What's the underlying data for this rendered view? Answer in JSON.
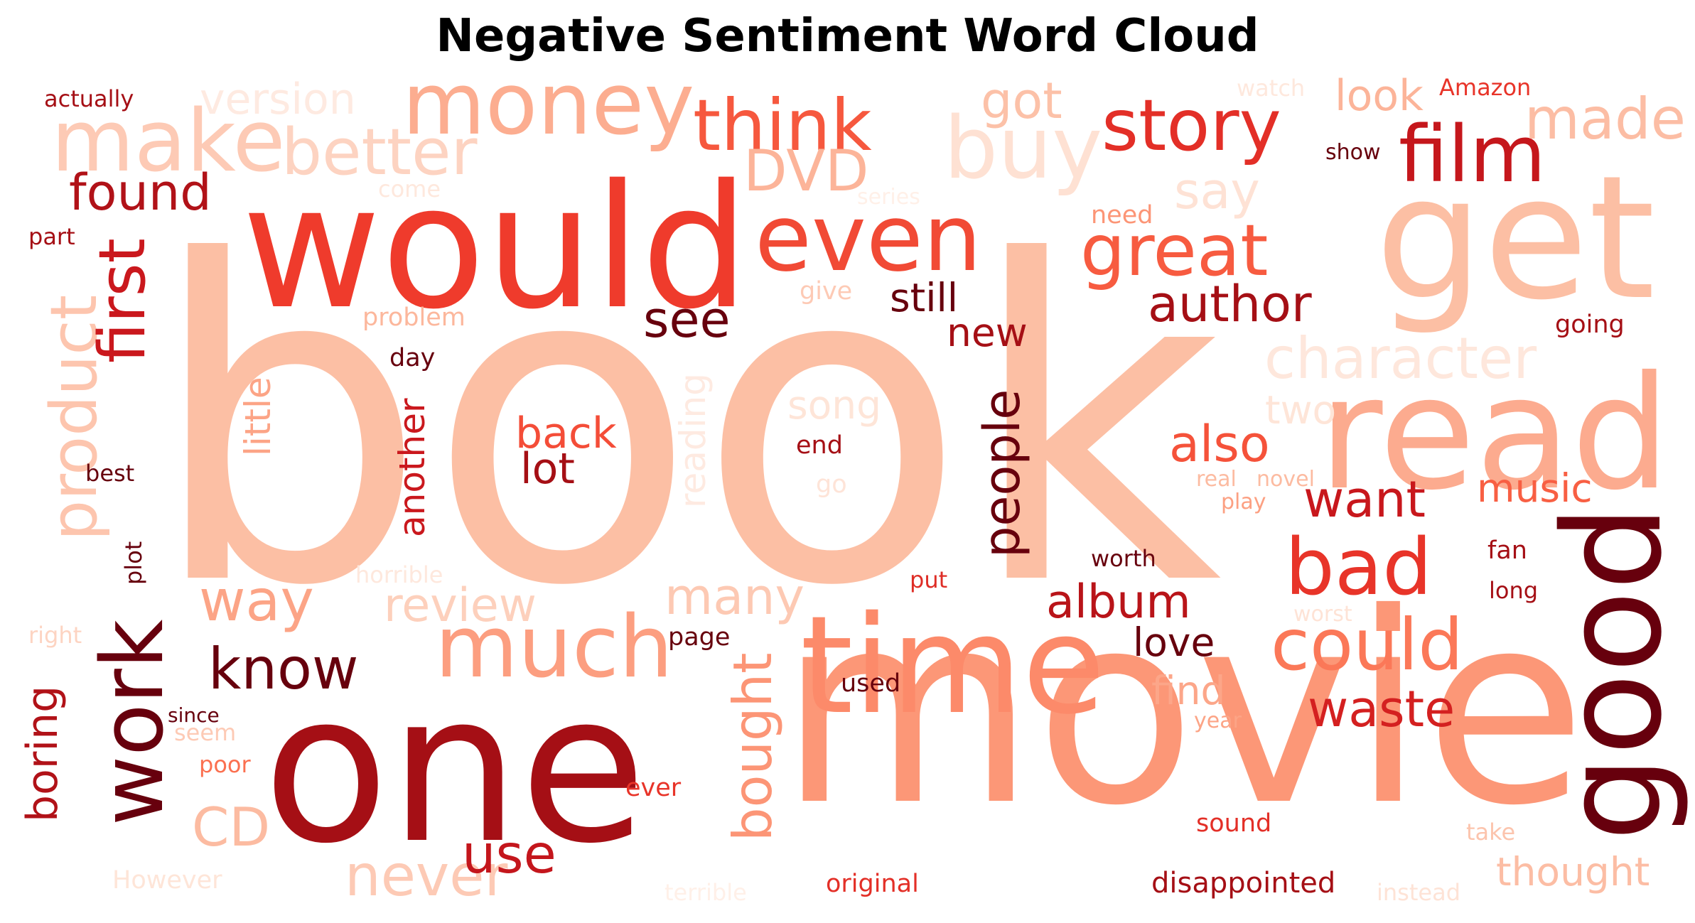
{
  "title": "Negative Sentiment Word Cloud",
  "words": [
    {
      "text": "book",
      "color": "#fcbfa4"
    },
    {
      "text": "movie",
      "color": "#fc9777"
    },
    {
      "text": "one",
      "color": "#a50f15"
    },
    {
      "text": "would",
      "color": "#ef3b2c"
    },
    {
      "text": "get",
      "color": "#fcbfa4"
    },
    {
      "text": "read",
      "color": "#fcab8f"
    },
    {
      "text": "good",
      "color": "#67000d"
    },
    {
      "text": "time",
      "color": "#fc8a6a"
    },
    {
      "text": "even",
      "color": "#f14a35"
    },
    {
      "text": "much",
      "color": "#fc9e80"
    },
    {
      "text": "work",
      "color": "#67000d"
    },
    {
      "text": "money",
      "color": "#fcad90"
    },
    {
      "text": "make",
      "color": "#fdcab5"
    },
    {
      "text": "film",
      "color": "#c5171c"
    },
    {
      "text": "buy",
      "color": "#fee1d3"
    },
    {
      "text": "great",
      "color": "#f75b40"
    },
    {
      "text": "think",
      "color": "#f6583e"
    },
    {
      "text": "story",
      "color": "#e32f27"
    },
    {
      "text": "bad",
      "color": "#e83429"
    },
    {
      "text": "could",
      "color": "#fb7858"
    },
    {
      "text": "better",
      "color": "#fdd3c1"
    },
    {
      "text": "product",
      "color": "#fdc5ae"
    },
    {
      "text": "first",
      "color": "#ca181d"
    },
    {
      "text": "made",
      "color": "#fcbda4"
    },
    {
      "text": "DVD",
      "color": "#fcb499"
    },
    {
      "text": "way",
      "color": "#fca486"
    },
    {
      "text": "know",
      "color": "#67000d"
    },
    {
      "text": "never",
      "color": "#fdcab5"
    },
    {
      "text": "people",
      "color": "#67000d"
    },
    {
      "text": "character",
      "color": "#fee7dc"
    },
    {
      "text": "waste",
      "color": "#d42020"
    },
    {
      "text": "found",
      "color": "#b11218"
    },
    {
      "text": "see",
      "color": "#67000d"
    },
    {
      "text": "author",
      "color": "#a50f15"
    },
    {
      "text": "say",
      "color": "#fee2d5"
    },
    {
      "text": "got",
      "color": "#fcc1a8"
    },
    {
      "text": "look",
      "color": "#fcb499"
    },
    {
      "text": "version",
      "color": "#feeae1"
    },
    {
      "text": "also",
      "color": "#f5523a"
    },
    {
      "text": "want",
      "color": "#c8171c"
    },
    {
      "text": "album",
      "color": "#b91419"
    },
    {
      "text": "review",
      "color": "#fdd0bc"
    },
    {
      "text": "many",
      "color": "#fdc9b3"
    },
    {
      "text": "bought",
      "color": "#fc9576"
    },
    {
      "text": "CD",
      "color": "#fcbba1"
    },
    {
      "text": "boring",
      "color": "#b11218"
    },
    {
      "text": "use",
      "color": "#c4161c"
    },
    {
      "text": "still",
      "color": "#67000d"
    },
    {
      "text": "new",
      "color": "#a50f15"
    },
    {
      "text": "little",
      "color": "#fca486"
    },
    {
      "text": "another",
      "color": "#ca181d"
    },
    {
      "text": "reading",
      "color": "#feeae1"
    },
    {
      "text": "back",
      "color": "#f44d38"
    },
    {
      "text": "lot",
      "color": "#a50f15"
    },
    {
      "text": "music",
      "color": "#f85f43"
    },
    {
      "text": "song",
      "color": "#fee5d8"
    },
    {
      "text": "two",
      "color": "#fee5d8"
    },
    {
      "text": "love",
      "color": "#67000d"
    },
    {
      "text": "find",
      "color": "#fca689"
    },
    {
      "text": "thought",
      "color": "#fcbda4"
    },
    {
      "text": "disappointed",
      "color": "#a50f15"
    },
    {
      "text": "actually",
      "color": "#a50f15"
    },
    {
      "text": "part",
      "color": "#a50f15"
    },
    {
      "text": "come",
      "color": "#fee8dd"
    },
    {
      "text": "series",
      "color": "#fff0e8"
    },
    {
      "text": "need",
      "color": "#fc9576"
    },
    {
      "text": "give",
      "color": "#fdcab5"
    },
    {
      "text": "problem",
      "color": "#fcb79c"
    },
    {
      "text": "day",
      "color": "#67000d"
    },
    {
      "text": "best",
      "color": "#67000d"
    },
    {
      "text": "plot",
      "color": "#67000d"
    },
    {
      "text": "horrible",
      "color": "#fee8dd"
    },
    {
      "text": "right",
      "color": "#fdd4c2"
    },
    {
      "text": "since",
      "color": "#67000d"
    },
    {
      "text": "seem",
      "color": "#fdcab5"
    },
    {
      "text": "poor",
      "color": "#fb7050"
    },
    {
      "text": "However",
      "color": "#fee5d8"
    },
    {
      "text": "terrible",
      "color": "#fff0e8"
    },
    {
      "text": "page",
      "color": "#67000d"
    },
    {
      "text": "used",
      "color": "#67000d"
    },
    {
      "text": "ever",
      "color": "#e83429"
    },
    {
      "text": "original",
      "color": "#e32f27"
    },
    {
      "text": "end",
      "color": "#a50f15"
    },
    {
      "text": "go",
      "color": "#fee4d8"
    },
    {
      "text": "worth",
      "color": "#67000d"
    },
    {
      "text": "put",
      "color": "#de2d26"
    },
    {
      "text": "watch",
      "color": "#fee8dd"
    },
    {
      "text": "Amazon",
      "color": "#e83429"
    },
    {
      "text": "show",
      "color": "#67000d"
    },
    {
      "text": "real",
      "color": "#fcbba1"
    },
    {
      "text": "novel",
      "color": "#fcbba1"
    },
    {
      "text": "play",
      "color": "#fca082"
    },
    {
      "text": "fan",
      "color": "#a50f15"
    },
    {
      "text": "long",
      "color": "#a50f15"
    },
    {
      "text": "worst",
      "color": "#fee3d6"
    },
    {
      "text": "year",
      "color": "#fca486"
    },
    {
      "text": "sound",
      "color": "#e32f27"
    },
    {
      "text": "take",
      "color": "#fcc4ad"
    },
    {
      "text": "instead",
      "color": "#fee3d6"
    },
    {
      "text": "going",
      "color": "#a50f15"
    }
  ]
}
